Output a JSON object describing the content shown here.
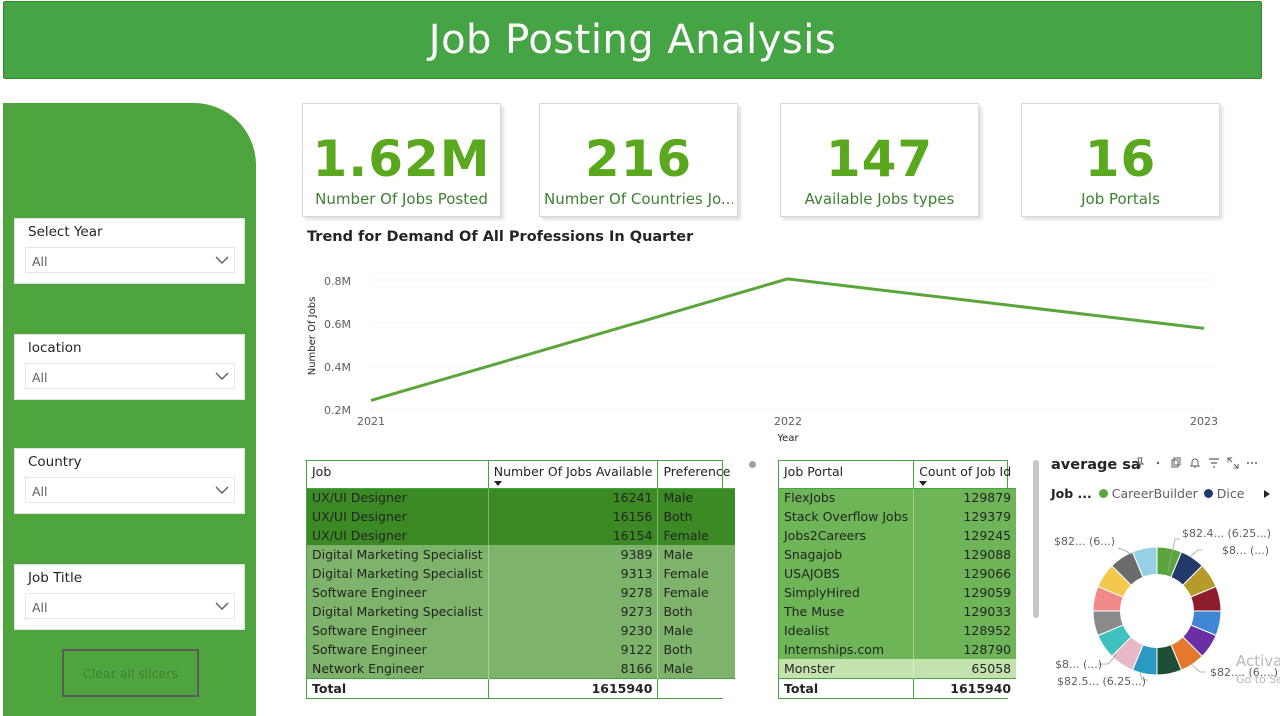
{
  "header": {
    "title": "Job Posting Analysis"
  },
  "slicers": [
    {
      "title": "Select Year",
      "value": "All"
    },
    {
      "title": "location",
      "value": "All"
    },
    {
      "title": "Country",
      "value": "All"
    },
    {
      "title": "Job Title",
      "value": "All"
    }
  ],
  "clear_button": "Clear all slicers",
  "kpis": [
    {
      "value": "1.62M",
      "label": "Number Of Jobs Posted"
    },
    {
      "value": "216",
      "label": "Number Of Countries Jo..."
    },
    {
      "value": "147",
      "label": "Available Jobs types"
    },
    {
      "value": "16",
      "label": "Job Portals"
    }
  ],
  "line_chart": {
    "title": "Trend for Demand Of All Professions In Quarter",
    "ylabel": "Number Of Jobs",
    "xlabel": "Year",
    "yticks": [
      "0.8M",
      "0.6M",
      "0.4M",
      "0.2M"
    ],
    "xticks": [
      "2021",
      "2022",
      "2023"
    ]
  },
  "chart_data": {
    "type": "line",
    "x": [
      2021,
      2022,
      2023
    ],
    "values": [
      240000,
      805000,
      575000
    ],
    "xlabel": "Year",
    "ylabel": "Number Of Jobs",
    "ylim": [
      200000,
      800000
    ],
    "color": "#5aa63c"
  },
  "jobs_table": {
    "headers": [
      "Job",
      "Number Of Jobs Available",
      "Preference"
    ],
    "rows": [
      {
        "job": "UX/UI Designer",
        "count": "16241",
        "pref": "Male",
        "shade": "dark"
      },
      {
        "job": "UX/UI Designer",
        "count": "16156",
        "pref": "Both",
        "shade": "dark"
      },
      {
        "job": "UX/UI Designer",
        "count": "16154",
        "pref": "Female",
        "shade": "dark"
      },
      {
        "job": "Digital Marketing Specialist",
        "count": "9389",
        "pref": "Male",
        "shade": "mid"
      },
      {
        "job": "Digital Marketing Specialist",
        "count": "9313",
        "pref": "Female",
        "shade": "mid"
      },
      {
        "job": "Software Engineer",
        "count": "9278",
        "pref": "Female",
        "shade": "mid"
      },
      {
        "job": "Digital Marketing Specialist",
        "count": "9273",
        "pref": "Both",
        "shade": "mid"
      },
      {
        "job": "Software Engineer",
        "count": "9230",
        "pref": "Male",
        "shade": "mid"
      },
      {
        "job": "Software Engineer",
        "count": "9122",
        "pref": "Both",
        "shade": "mid"
      },
      {
        "job": "Network Engineer",
        "count": "8166",
        "pref": "Male",
        "shade": "mid"
      }
    ],
    "total_label": "Total",
    "total_value": "1615940"
  },
  "portal_table": {
    "headers": [
      "Job Portal",
      "Count of Job Id"
    ],
    "rows": [
      {
        "portal": "FlexJobs",
        "count": "129879",
        "shade": "mid"
      },
      {
        "portal": "Stack Overflow Jobs",
        "count": "129379",
        "shade": "mid"
      },
      {
        "portal": "Jobs2Careers",
        "count": "129245",
        "shade": "mid"
      },
      {
        "portal": "Snagajob",
        "count": "129088",
        "shade": "mid"
      },
      {
        "portal": "USAJOBS",
        "count": "129066",
        "shade": "mid"
      },
      {
        "portal": "SimplyHired",
        "count": "129059",
        "shade": "mid"
      },
      {
        "portal": "The Muse",
        "count": "129033",
        "shade": "mid"
      },
      {
        "portal": "Idealist",
        "count": "128952",
        "shade": "mid"
      },
      {
        "portal": "Internships.com",
        "count": "128790",
        "shade": "mid"
      },
      {
        "portal": "Monster",
        "count": "65058",
        "shade": "light"
      }
    ],
    "total_label": "Total",
    "total_value": "1615940"
  },
  "donut": {
    "title": "average sa",
    "legend_label": "Job ...",
    "legend_items": [
      {
        "name": "CareerBuilder",
        "color": "#5aa63c"
      },
      {
        "name": "Dice",
        "color": "#223a6b"
      }
    ],
    "labels": [
      "$82.4... (6.25...)",
      "$8... (...)",
      "$82.... (6....)",
      "$82.5... (6.25...)",
      "$8... (...)",
      "$82... (6...)"
    ],
    "slice_colors": [
      "#5aa63c",
      "#223a6b",
      "#b59b2a",
      "#8e1d2c",
      "#3f86d4",
      "#6b2fa5",
      "#e5782c",
      "#1f4e36",
      "#2b9ac2",
      "#e7b8c6",
      "#3fc2bf",
      "#8a8a8a",
      "#f28a8a",
      "#f2c94c",
      "#6b6b6b",
      "#95d0e6"
    ]
  },
  "watermark": {
    "line1": "Activa",
    "line2": "Go to Se"
  }
}
